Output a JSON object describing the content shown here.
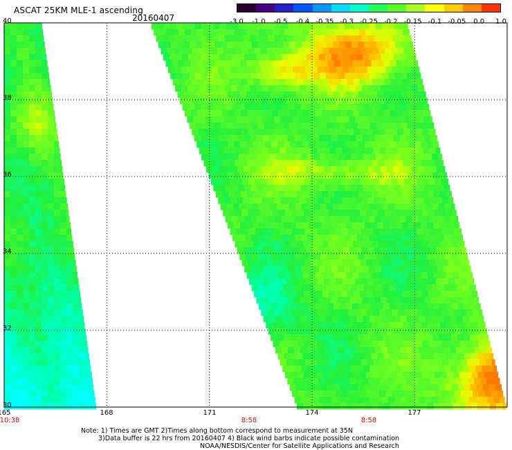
{
  "header": {
    "title": "ASCAT 25KM MLE-1 ascending",
    "date": "20160407"
  },
  "colorbar": {
    "labels": [
      "-3.0",
      "-1.0",
      "-0.5",
      "-0.4",
      "-0.35",
      "-0.3",
      "-0.25",
      "-0.2",
      "-0.15",
      "-0.1",
      "-0.05",
      "0.0",
      "1.0"
    ],
    "colors": [
      "#2a0030",
      "#4a0080",
      "#2222cc",
      "#0055ff",
      "#0099ff",
      "#00ddff",
      "#00ffcc",
      "#22ff55",
      "#55ff22",
      "#aaff22",
      "#ffff00",
      "#ffcc00",
      "#ff8800",
      "#ff3300"
    ]
  },
  "chart_data": {
    "type": "heatmap",
    "title": "ASCAT 25KM MLE-1 ascending",
    "subtitle": "20160407",
    "xlabel": "",
    "ylabel": "",
    "xlim": [
      165,
      179.7
    ],
    "ylim": [
      30,
      40
    ],
    "x_ticks": [
      "165",
      "168",
      "171",
      "174",
      "177"
    ],
    "y_ticks": [
      "40",
      "38",
      "36",
      "34",
      "32",
      "30"
    ],
    "time_labels": [
      {
        "lon": 165,
        "text": "10:38"
      },
      {
        "lon": 172,
        "text": "8:58"
      },
      {
        "lon": 175.5,
        "text": "8:58"
      }
    ],
    "grid": true,
    "color_scale": [
      "-3.0",
      "-1.0",
      "-0.5",
      "-0.4",
      "-0.35",
      "-0.3",
      "-0.25",
      "-0.2",
      "-0.15",
      "-0.1",
      "-0.05",
      "0.0",
      "1.0"
    ],
    "swaths": [
      {
        "name": "swath-west",
        "lon_west": 165,
        "lon_east_top": 166.1,
        "lon_east_bottom": 167.7,
        "lat_top": 40,
        "lat_bottom": 30
      },
      {
        "name": "swath-east",
        "lon_west_top": 169.3,
        "lon_west_bottom": 173.6,
        "lon_east_top": 176.8,
        "lon_east_bottom": 179.7,
        "lat_top": 40,
        "lat_bottom": 30
      }
    ],
    "features": [
      {
        "region": "northeast swath near 38.5-39.5N 174-176E",
        "value_range": [
          -0.05,
          1.0
        ]
      },
      {
        "region": "southeast corner near 30-31.5N 178-179.7E",
        "value_range": [
          0.0,
          1.0
        ]
      },
      {
        "region": "west swath south of 34N",
        "value_range": [
          -0.3,
          -0.25
        ]
      },
      {
        "region": "interior of east swath",
        "value_range": [
          -0.2,
          -0.1
        ]
      }
    ]
  },
  "notes": {
    "line1": "Note: 1) Times are GMT 2)Times along bottom correspond to measurement at 35N",
    "line2": "3)Data buffer is 22 hrs from 20160407 4) Black wind barbs indicate possible contamination",
    "line3": "NOAA/NESDIS/Center for Satellite Applications and Research"
  }
}
